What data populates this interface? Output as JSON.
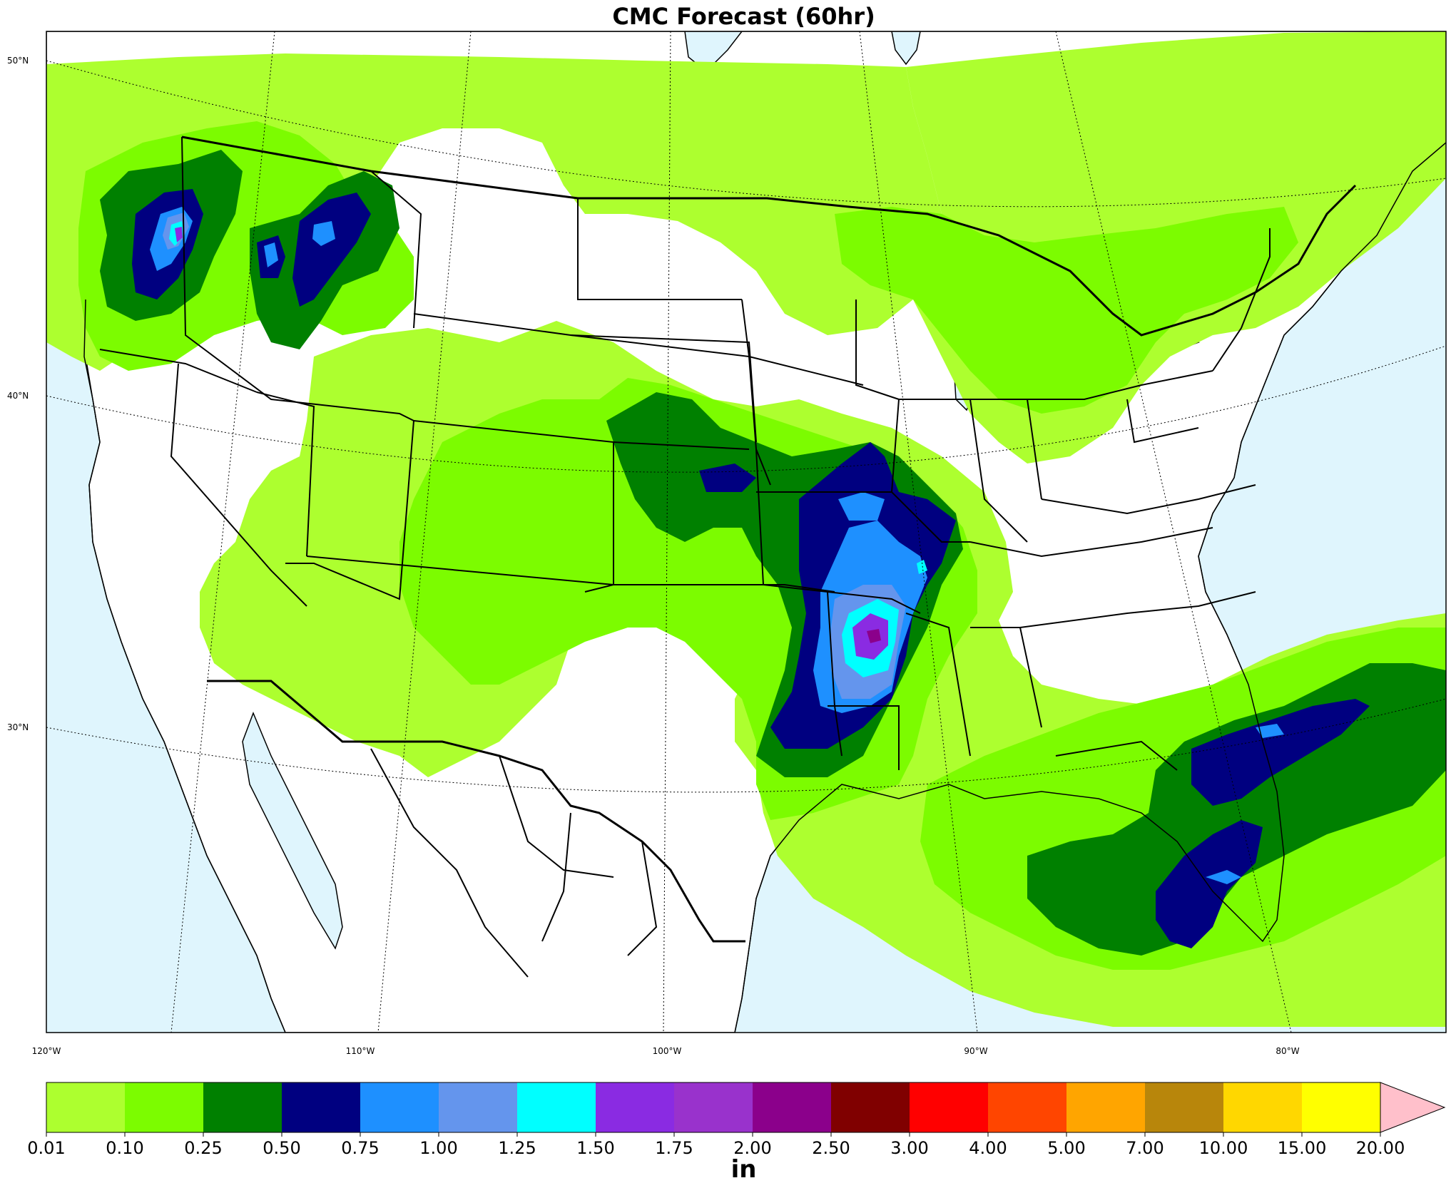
{
  "title": "CMC Forecast (60hr)",
  "map": {
    "lat_labels": [
      "50°N",
      "40°N",
      "30°N"
    ],
    "lon_labels": [
      "120°W",
      "110°W",
      "100°W",
      "90°W",
      "80°W"
    ],
    "ocean_color": "#dff5fd",
    "land_color": "#ffffff"
  },
  "legend": {
    "units": "in",
    "levels": [
      "0.01",
      "0.10",
      "0.25",
      "0.50",
      "0.75",
      "1.00",
      "1.25",
      "1.50",
      "1.75",
      "2.00",
      "2.50",
      "3.00",
      "4.00",
      "5.00",
      "7.00",
      "10.00",
      "15.00",
      "20.00"
    ],
    "colors": [
      "#adff2f",
      "#7cfc00",
      "#008000",
      "#000080",
      "#1e90ff",
      "#6495ed",
      "#00ffff",
      "#8a2be2",
      "#9932cc",
      "#8b008b",
      "#800000",
      "#ff0000",
      "#ff4500",
      "#ffa500",
      "#b8860b",
      "#ffd700",
      "#ffff00"
    ],
    "extend_color": "#ffc0cb"
  },
  "precip_regions": [
    {
      "name": "pacific-northwest",
      "peak_in": "1.75-2.00"
    },
    {
      "name": "northern-rockies",
      "peak_in": "0.75-1.00"
    },
    {
      "name": "central-plains",
      "peak_in": "0.50-0.75"
    },
    {
      "name": "lower-mississippi-valley",
      "peak_in": "2.00-2.50"
    },
    {
      "name": "southeast-gulf-coast",
      "peak_in": "0.75-1.00"
    }
  ]
}
